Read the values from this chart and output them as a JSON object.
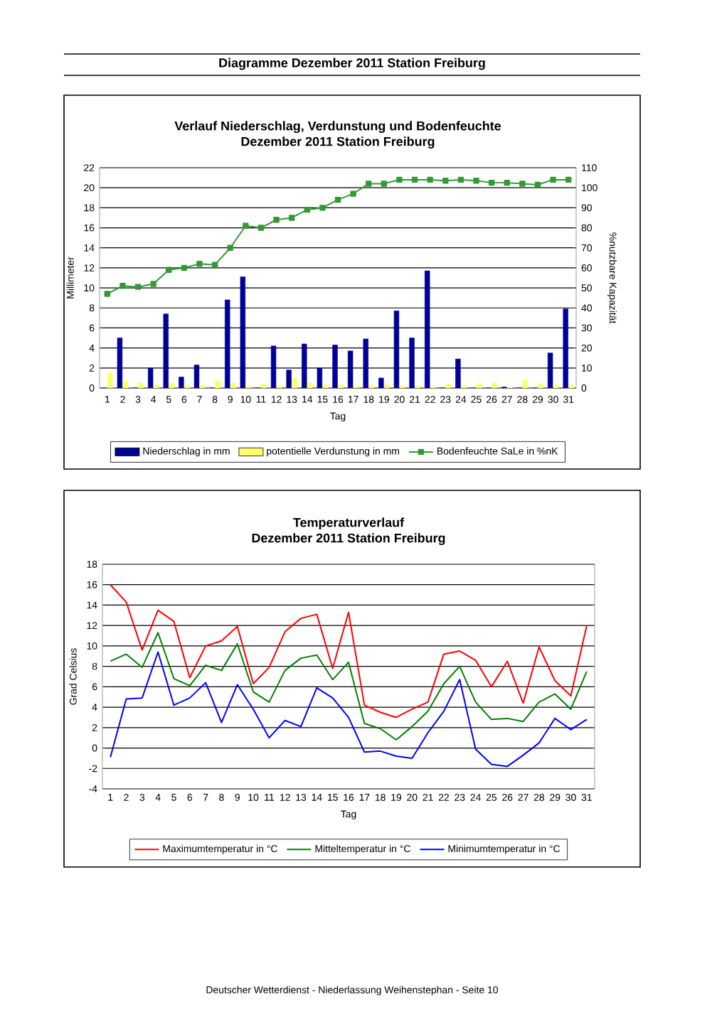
{
  "chart_data": [
    {
      "type": "bar",
      "title": "Verlauf Niederschlag, Verdunstung und Bodenfeuchte",
      "subtitle": "Dezember 2011 Station Freiburg",
      "xlabel": "Tag",
      "ylabel": "Millimeter",
      "y2label": "%nutzbare Kapazität",
      "categories": [
        "1",
        "2",
        "3",
        "4",
        "5",
        "6",
        "7",
        "8",
        "9",
        "10",
        "11",
        "12",
        "13",
        "14",
        "15",
        "16",
        "17",
        "18",
        "19",
        "20",
        "21",
        "22",
        "23",
        "24",
        "25",
        "26",
        "27",
        "28",
        "29",
        "30",
        "31"
      ],
      "series": [
        {
          "name": "Niederschlag in mm",
          "color": "#000099",
          "values": [
            0,
            5.0,
            0,
            2.0,
            7.4,
            1.1,
            2.3,
            0,
            8.8,
            11.1,
            0,
            4.2,
            1.8,
            4.4,
            2.0,
            4.3,
            3.7,
            4.9,
            1.0,
            7.7,
            5.0,
            11.7,
            0,
            2.9,
            0,
            0,
            0.1,
            0,
            0,
            3.5,
            7.9
          ]
        },
        {
          "name": "potentielle Verdunstung in mm",
          "color": "#ffff66",
          "values": [
            1.5,
            0.7,
            0.5,
            0.3,
            0.5,
            0.3,
            0.3,
            0.7,
            0.5,
            0.2,
            0.4,
            0.2,
            1.0,
            0.5,
            0.3,
            0.3,
            0.2,
            0.3,
            0.3,
            0.2,
            0.2,
            0.1,
            0.4,
            0.2,
            0.4,
            0.5,
            0.1,
            0.8,
            0.4,
            0.3,
            0.3
          ]
        },
        {
          "name": "Bodenfeuchte SaLe in %nK",
          "color": "#339933",
          "type": "line",
          "axis": "y2",
          "marker": "square",
          "values": [
            47,
            51,
            50.5,
            52,
            59,
            60,
            62,
            61.5,
            70,
            81,
            80,
            84,
            85,
            89,
            90,
            94,
            97,
            102,
            102,
            104,
            104,
            104,
            103.5,
            104,
            103.5,
            102.5,
            102.5,
            102,
            101.5,
            104,
            104
          ]
        }
      ],
      "ylim": [
        0,
        22
      ],
      "yticks": [
        0,
        2,
        4,
        6,
        8,
        10,
        12,
        14,
        16,
        18,
        20,
        22
      ],
      "y2lim": [
        0,
        110
      ],
      "y2ticks": [
        0,
        10,
        20,
        30,
        40,
        50,
        60,
        70,
        80,
        90,
        100,
        110
      ],
      "grid": "y",
      "legend": "bottom",
      "annotations": [
        "Diagramme Dezember 2011 Station Freiburg"
      ]
    },
    {
      "type": "line",
      "title": "Temperaturverlauf",
      "subtitle": "Dezember 2011 Station Freiburg",
      "xlabel": "Tag",
      "ylabel": "Grad Celsius",
      "categories": [
        "1",
        "2",
        "3",
        "4",
        "5",
        "6",
        "7",
        "8",
        "9",
        "10",
        "11",
        "12",
        "13",
        "14",
        "15",
        "16",
        "17",
        "18",
        "19",
        "20",
        "21",
        "22",
        "23",
        "24",
        "25",
        "26",
        "27",
        "28",
        "29",
        "30",
        "31"
      ],
      "series": [
        {
          "name": "Maximumtemperatur in °C",
          "color": "#ff0000",
          "values": [
            16,
            14.3,
            9.6,
            13.5,
            12.4,
            6.9,
            10,
            10.5,
            11.9,
            6.3,
            7.9,
            11.4,
            12.7,
            13.1,
            7.8,
            13.3,
            4.2,
            3.5,
            3.0,
            3.8,
            4.5,
            9.2,
            9.5,
            8.6,
            6.0,
            8.5,
            4.4,
            9.9,
            6.6,
            5.1,
            12.0
          ]
        },
        {
          "name": "Mitteltemperatur in °C",
          "color": "#008000",
          "values": [
            8.5,
            9.2,
            7.9,
            11.3,
            6.8,
            6.1,
            8.1,
            7.6,
            10.2,
            5.5,
            4.5,
            7.6,
            8.8,
            9.1,
            6.7,
            8.4,
            2.4,
            1.9,
            0.8,
            2.1,
            3.6,
            6.3,
            8.0,
            4.5,
            2.8,
            2.9,
            2.6,
            4.5,
            5.3,
            3.8,
            7.5
          ]
        },
        {
          "name": "Minimumtemperatur in °C",
          "color": "#0000ff",
          "values": [
            -0.9,
            4.8,
            4.9,
            9.4,
            4.2,
            4.9,
            6.4,
            2.5,
            6.2,
            3.8,
            1.0,
            2.7,
            2.1,
            5.9,
            4.9,
            3.0,
            -0.4,
            -0.3,
            -0.8,
            -1.0,
            1.5,
            3.6,
            6.7,
            -0.1,
            -1.6,
            -1.8,
            -0.7,
            0.5,
            2.9,
            1.8,
            2.8
          ]
        }
      ],
      "ylim": [
        -4,
        18
      ],
      "yticks": [
        -4,
        -2,
        0,
        2,
        4,
        6,
        8,
        10,
        12,
        14,
        16,
        18
      ],
      "grid": "y",
      "legend": "bottom",
      "annotations": [
        "Deutscher Wetterdienst - Niederlassung Weihenstephan - Seite 10"
      ]
    }
  ]
}
